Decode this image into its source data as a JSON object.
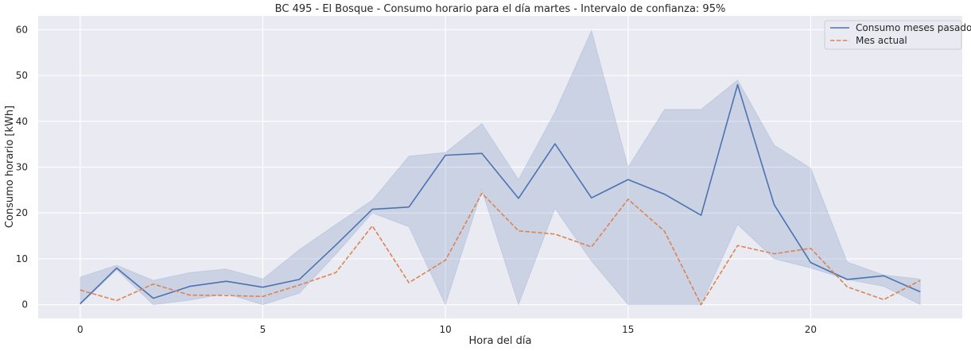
{
  "chart_data": {
    "type": "line",
    "title": "BC 495 - El Bosque - Consumo horario para el día martes - Intervalo de confianza: 95%",
    "xlabel": "Hora del día",
    "ylabel": "Consumo horario [kWh]",
    "xlim": [
      -1.15,
      24.15
    ],
    "ylim": [
      -3,
      63
    ],
    "xticks": [
      0,
      5,
      10,
      15,
      20
    ],
    "yticks": [
      0,
      10,
      20,
      30,
      40,
      50,
      60
    ],
    "grid": true,
    "legend_position": "top-right",
    "x": [
      0,
      1,
      2,
      3,
      4,
      5,
      6,
      7,
      8,
      9,
      10,
      11,
      12,
      13,
      14,
      15,
      16,
      17,
      18,
      19,
      20,
      21,
      22,
      23
    ],
    "series": [
      {
        "name": "Consumo meses pasados",
        "style": "solid",
        "color": "#4c72b0",
        "values": [
          0.2,
          8.0,
          1.4,
          4.0,
          5.1,
          3.8,
          5.5,
          13.0,
          20.8,
          21.3,
          32.6,
          33.0,
          23.2,
          35.1,
          23.3,
          27.3,
          24.1,
          19.5,
          48.0,
          21.8,
          9.2,
          5.5,
          6.3,
          2.8
        ],
        "ci_lower": [
          0.0,
          7.6,
          0.0,
          1.0,
          2.4,
          0.0,
          2.5,
          11.0,
          20.0,
          17.0,
          0.0,
          25.0,
          0.0,
          21.0,
          9.5,
          0.0,
          0.0,
          0.0,
          17.5,
          10.0,
          8.0,
          5.5,
          4.0,
          0.0
        ],
        "ci_upper": [
          6.0,
          8.6,
          5.3,
          7.0,
          7.8,
          5.6,
          12.0,
          17.5,
          22.8,
          32.4,
          33.2,
          39.5,
          27.3,
          42.0,
          59.8,
          30.0,
          42.6,
          42.6,
          49.0,
          34.8,
          29.8,
          9.3,
          6.5,
          5.6
        ]
      },
      {
        "name": "Mes actual",
        "style": "dashed",
        "color": "#dd8452",
        "values": [
          3.2,
          0.9,
          4.5,
          2.1,
          2.0,
          1.8,
          4.3,
          7.0,
          17.2,
          4.8,
          9.7,
          24.3,
          16.1,
          15.4,
          12.6,
          23.0,
          16.0,
          0.0,
          12.9,
          11.1,
          12.3,
          3.9,
          1.1,
          5.3
        ]
      }
    ]
  }
}
